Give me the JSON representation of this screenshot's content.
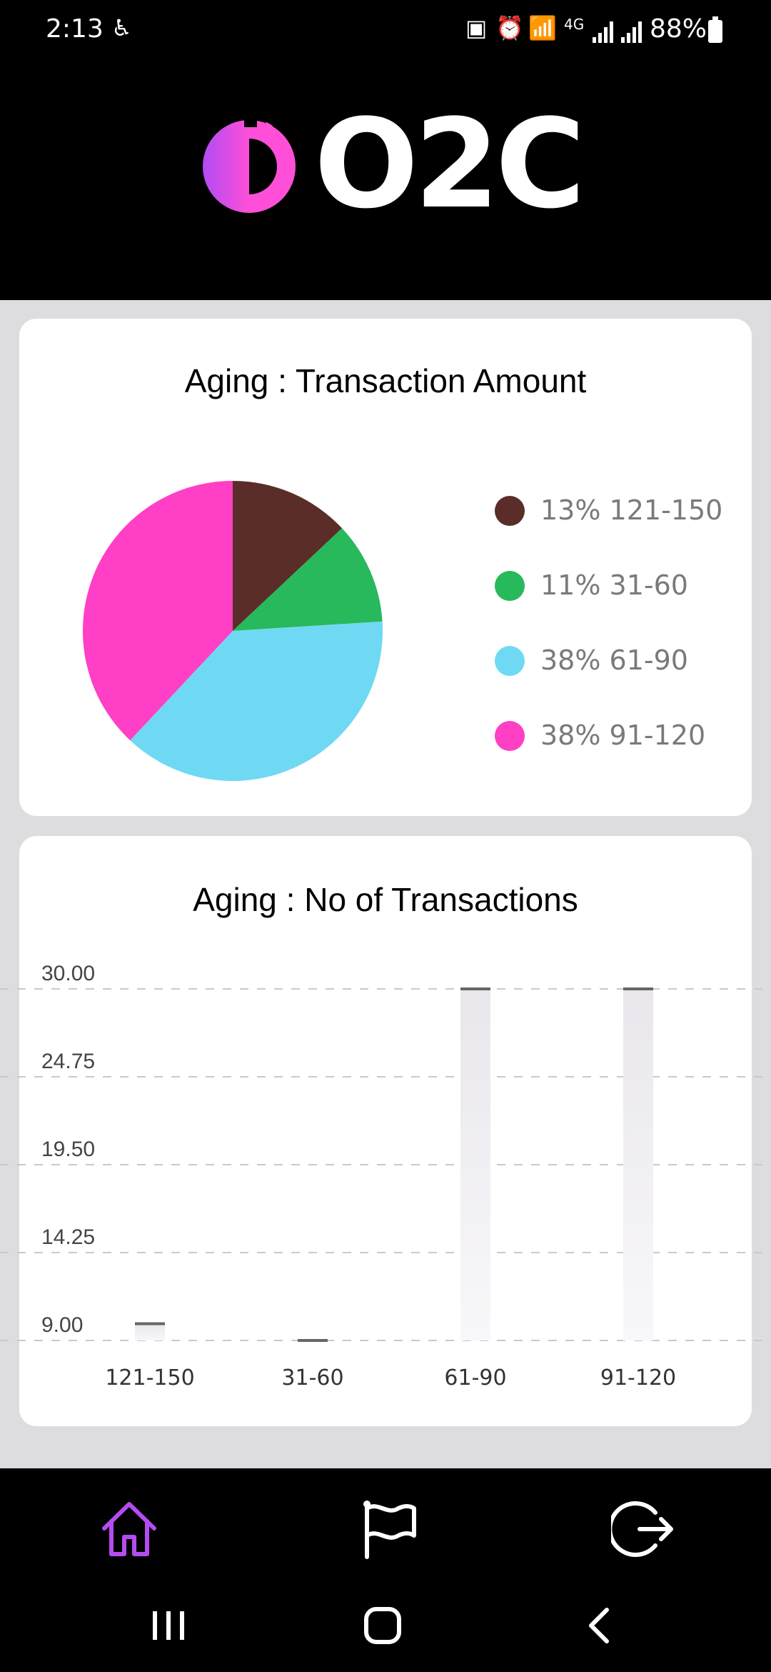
{
  "status_bar": {
    "time": "2:13",
    "network": "4G",
    "battery": "88%",
    "icons": [
      "accessibility-icon",
      "battery-saver-icon",
      "alarm-icon",
      "wifi-icon",
      "signal-icon"
    ]
  },
  "header": {
    "logo_text": "O2C"
  },
  "pie_chart": {
    "title": "Aging : Transaction Amount",
    "legend": [
      "13% 121-150",
      "11% 31-60",
      "38% 61-90",
      "38% 91-120"
    ]
  },
  "bar_chart": {
    "title": "Aging : No of Transactions"
  },
  "chart_data": [
    {
      "type": "pie",
      "title": "Aging : Transaction Amount",
      "categories": [
        "121-150",
        "31-60",
        "61-90",
        "91-120"
      ],
      "values": [
        13,
        11,
        38,
        38
      ],
      "colors": [
        "#5a2d28",
        "#27b95b",
        "#6fd9f4",
        "#ff3fc5"
      ],
      "legend_position": "right"
    },
    {
      "type": "bar",
      "title": "Aging : No of Transactions",
      "categories": [
        "121-150",
        "31-60",
        "61-90",
        "91-120"
      ],
      "values": [
        10,
        9,
        30,
        30
      ],
      "ylim": [
        9,
        30
      ],
      "yticks": [
        "30.00",
        "24.75",
        "19.50",
        "14.25",
        "9.00"
      ],
      "grid": true
    }
  ],
  "bottom_nav": {
    "items": [
      "home-icon",
      "flag-icon",
      "logout-icon"
    ],
    "active": "home",
    "accent": "#b44cf0"
  }
}
